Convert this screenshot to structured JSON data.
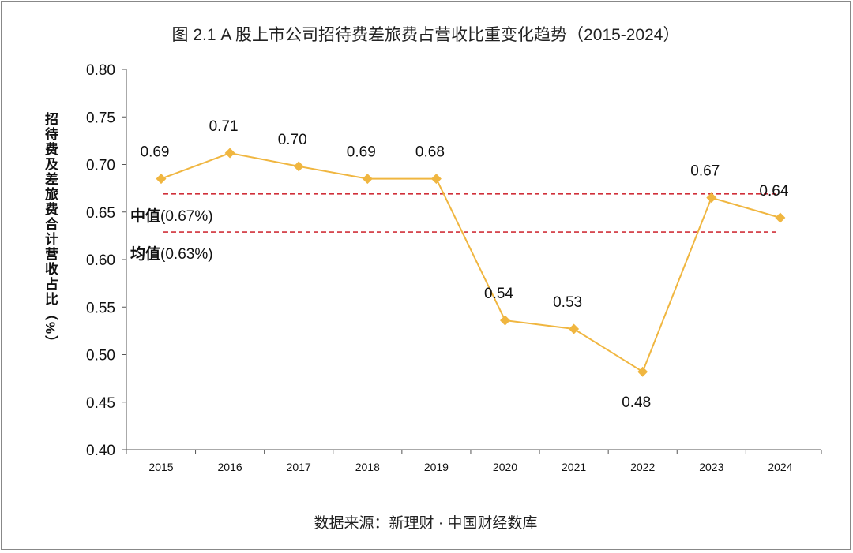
{
  "title": "图 2.1 A 股上市公司招待费差旅费占营收比重变化趋势（2015-2024）",
  "source": "数据来源：新理财 · 中国财经数库",
  "chart_data": {
    "type": "line",
    "title": "图 2.1 A 股上市公司招待费差旅费占营收比重变化趋势（2015-2024）",
    "ylabel": "招待费及差旅费合计营收占比（%）",
    "xlabel": "",
    "categories": [
      "2015",
      "2016",
      "2017",
      "2018",
      "2019",
      "2020",
      "2021",
      "2022",
      "2023",
      "2024"
    ],
    "values": [
      0.685,
      0.712,
      0.698,
      0.685,
      0.685,
      0.536,
      0.527,
      0.482,
      0.665,
      0.644
    ],
    "data_labels": [
      "0.69",
      "0.71",
      "0.70",
      "0.69",
      "0.68",
      "0.54",
      "0.53",
      "0.48",
      "0.67",
      "0.64"
    ],
    "ylim": [
      0.4,
      0.8
    ],
    "yticks": [
      "0.40",
      "0.45",
      "0.50",
      "0.55",
      "0.60",
      "0.65",
      "0.70",
      "0.75",
      "0.80"
    ],
    "line_color": "#f0b640",
    "reference_lines": [
      {
        "name": "中值",
        "value_text": "(0.67%)",
        "value": 0.669,
        "color": "#d0303a"
      },
      {
        "name": "均值",
        "value_text": "(0.63%)",
        "value": 0.629,
        "color": "#d0303a"
      }
    ],
    "grid": false
  }
}
